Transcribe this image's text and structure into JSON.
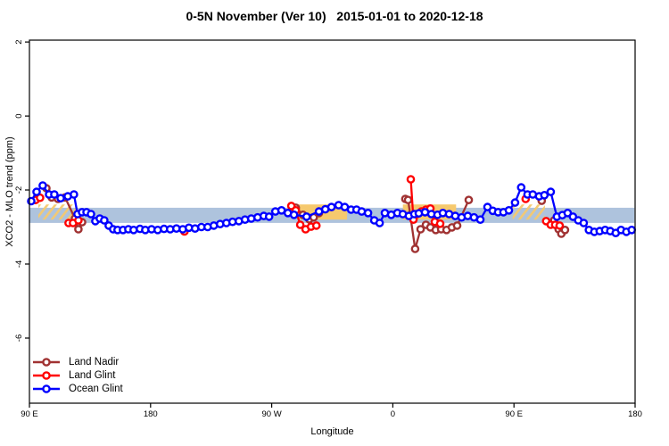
{
  "figure": {
    "title": "0-5N November (Ver 10)   2015-01-01 to 2020-12-18"
  },
  "chart_data": {
    "type": "line",
    "title": "0-5N November (Ver 10)   2015-01-01 to 2020-12-18",
    "xlabel": "Longitude",
    "ylabel": "XCO2 - MLO trend (ppm)",
    "x_units": "degrees eastward along axis starting at 90E (wrapped longitude)",
    "x_range": [
      0,
      450
    ],
    "x_ticks": [
      {
        "pos": 0,
        "label": "90 E"
      },
      {
        "pos": 90,
        "label": "180"
      },
      {
        "pos": 180,
        "label": "90 W"
      },
      {
        "pos": 270,
        "label": "0"
      },
      {
        "pos": 360,
        "label": "90 E"
      },
      {
        "pos": 450,
        "label": "180"
      }
    ],
    "y_range": [
      -7.76,
      2.05
    ],
    "y_ticks": [
      {
        "pos": 2,
        "label": "2"
      },
      {
        "pos": 0,
        "label": "0"
      },
      {
        "pos": -2,
        "label": "-2"
      },
      {
        "pos": -4,
        "label": "-4"
      },
      {
        "pos": -6,
        "label": "-6"
      }
    ],
    "grid": false,
    "legend_position": "bottom-left",
    "bands": [
      {
        "name": "ocean-reference-band",
        "color": "#AEC3DD",
        "opacity": 1,
        "y_top": -2.48,
        "y_bottom": -2.89,
        "pattern": "solid",
        "segments": [
          [
            0,
            449.5
          ]
        ]
      },
      {
        "name": "flagged-band-solid",
        "color": "#F6C96E",
        "opacity": 1,
        "y_top": -2.39,
        "y_bottom": -2.8,
        "pattern": "solid",
        "segments": [
          [
            200,
            236
          ],
          [
            277.5,
            317
          ]
        ]
      },
      {
        "name": "flagged-band-hatched",
        "color": "#F6C96E",
        "opacity": 0.95,
        "y_top": -2.39,
        "y_bottom": -2.8,
        "pattern": "hatch",
        "segments": [
          [
            6.6,
            34.4
          ],
          [
            359,
            383
          ]
        ]
      }
    ],
    "series": [
      {
        "name": "Land Nadir",
        "color": "#A03232",
        "marker": "open-circle",
        "gap_break": 9,
        "points": [
          [
            12.6,
            -1.95
          ],
          [
            16.5,
            -2.2
          ],
          [
            21.2,
            -2.24
          ],
          [
            26.5,
            -2.2
          ],
          [
            33.8,
            -2.77
          ],
          [
            36.4,
            -3.06
          ],
          [
            39.1,
            -2.87
          ],
          [
            197.9,
            -2.48
          ],
          [
            203.2,
            -2.67
          ],
          [
            207.9,
            -2.79
          ],
          [
            211.2,
            -2.74
          ],
          [
            215.1,
            -2.62
          ],
          [
            279.3,
            -2.24
          ],
          [
            281.3,
            -2.27
          ],
          [
            286.6,
            -3.59
          ],
          [
            290.6,
            -3.06
          ],
          [
            294.6,
            -2.94
          ],
          [
            297.9,
            -3.01
          ],
          [
            301.9,
            -3.08
          ],
          [
            305.9,
            -3.06
          ],
          [
            309.9,
            -3.08
          ],
          [
            313.9,
            -3.01
          ],
          [
            317.8,
            -2.96
          ],
          [
            326.4,
            -2.27
          ],
          [
            380.6,
            -2.29
          ],
          [
            389.9,
            -2.82
          ],
          [
            393.2,
            -3.06
          ],
          [
            395.2,
            -3.18
          ],
          [
            397.9,
            -3.08
          ]
        ]
      },
      {
        "name": "Land Glint",
        "color": "#FF0000",
        "marker": "open-circle",
        "gap_break": 9,
        "points": [
          [
            4.6,
            -2.27
          ],
          [
            7.9,
            -2.21
          ],
          [
            29.1,
            -2.89
          ],
          [
            32.4,
            -2.89
          ],
          [
            36.4,
            -2.82
          ],
          [
            115.2,
            -3.12
          ],
          [
            194.6,
            -2.43
          ],
          [
            197.9,
            -2.55
          ],
          [
            201.2,
            -2.94
          ],
          [
            205.2,
            -3.06
          ],
          [
            209.2,
            -2.99
          ],
          [
            213.2,
            -2.96
          ],
          [
            283.3,
            -1.71
          ],
          [
            285.3,
            -2.8
          ],
          [
            287.9,
            -2.65
          ],
          [
            291.3,
            -2.58
          ],
          [
            294.6,
            -2.53
          ],
          [
            297.9,
            -2.5
          ],
          [
            301.2,
            -2.86
          ],
          [
            305.2,
            -2.91
          ],
          [
            368.7,
            -2.24
          ],
          [
            383.9,
            -2.84
          ],
          [
            387.3,
            -2.94
          ],
          [
            390.6,
            -2.94
          ],
          [
            393.9,
            -2.96
          ]
        ]
      },
      {
        "name": "Ocean Glint",
        "color": "#0000FF",
        "marker": "open-circle",
        "gap_break": 25,
        "points": [
          [
            1.3,
            -2.3
          ],
          [
            5.3,
            -2.05
          ],
          [
            9.9,
            -1.88
          ],
          [
            14.6,
            -2.12
          ],
          [
            18.5,
            -2.12
          ],
          [
            23.2,
            -2.22
          ],
          [
            28.5,
            -2.17
          ],
          [
            33.1,
            -2.12
          ],
          [
            35.7,
            -2.65
          ],
          [
            39.1,
            -2.6
          ],
          [
            42.4,
            -2.6
          ],
          [
            45.7,
            -2.65
          ],
          [
            49.0,
            -2.84
          ],
          [
            52.3,
            -2.77
          ],
          [
            55.6,
            -2.82
          ],
          [
            58.9,
            -2.96
          ],
          [
            62.2,
            -3.06
          ],
          [
            65.5,
            -3.08
          ],
          [
            69.5,
            -3.08
          ],
          [
            73.5,
            -3.06
          ],
          [
            77.4,
            -3.08
          ],
          [
            82.1,
            -3.05
          ],
          [
            86.1,
            -3.08
          ],
          [
            90.7,
            -3.06
          ],
          [
            95.3,
            -3.08
          ],
          [
            100.0,
            -3.05
          ],
          [
            104.6,
            -3.06
          ],
          [
            109.2,
            -3.04
          ],
          [
            113.9,
            -3.06
          ],
          [
            118.5,
            -3.02
          ],
          [
            123.1,
            -3.04
          ],
          [
            127.8,
            -3.0
          ],
          [
            132.4,
            -3.0
          ],
          [
            137.0,
            -2.96
          ],
          [
            141.7,
            -2.92
          ],
          [
            146.3,
            -2.89
          ],
          [
            150.9,
            -2.86
          ],
          [
            155.6,
            -2.84
          ],
          [
            160.2,
            -2.8
          ],
          [
            164.8,
            -2.77
          ],
          [
            169.5,
            -2.74
          ],
          [
            174.1,
            -2.7
          ],
          [
            178.1,
            -2.72
          ],
          [
            182.7,
            -2.58
          ],
          [
            187.3,
            -2.55
          ],
          [
            192.0,
            -2.62
          ],
          [
            196.6,
            -2.67
          ],
          [
            205.9,
            -2.72
          ],
          [
            215.1,
            -2.58
          ],
          [
            219.8,
            -2.52
          ],
          [
            224.4,
            -2.46
          ],
          [
            229.7,
            -2.41
          ],
          [
            234.3,
            -2.46
          ],
          [
            239.0,
            -2.53
          ],
          [
            243.0,
            -2.53
          ],
          [
            246.9,
            -2.58
          ],
          [
            251.6,
            -2.62
          ],
          [
            256.2,
            -2.82
          ],
          [
            260.2,
            -2.89
          ],
          [
            264.1,
            -2.62
          ],
          [
            268.8,
            -2.67
          ],
          [
            273.4,
            -2.62
          ],
          [
            277.4,
            -2.65
          ],
          [
            281.9,
            -2.7
          ],
          [
            286.0,
            -2.65
          ],
          [
            289.3,
            -2.63
          ],
          [
            293.9,
            -2.6
          ],
          [
            298.6,
            -2.65
          ],
          [
            303.2,
            -2.67
          ],
          [
            307.2,
            -2.62
          ],
          [
            311.8,
            -2.65
          ],
          [
            316.4,
            -2.7
          ],
          [
            321.1,
            -2.74
          ],
          [
            325.7,
            -2.7
          ],
          [
            330.3,
            -2.74
          ],
          [
            335.0,
            -2.8
          ],
          [
            340.3,
            -2.46
          ],
          [
            344.2,
            -2.56
          ],
          [
            348.2,
            -2.6
          ],
          [
            352.2,
            -2.6
          ],
          [
            356.2,
            -2.55
          ],
          [
            360.8,
            -2.34
          ],
          [
            365.4,
            -1.93
          ],
          [
            370.1,
            -2.12
          ],
          [
            374.0,
            -2.12
          ],
          [
            378.7,
            -2.17
          ],
          [
            382.6,
            -2.14
          ],
          [
            387.3,
            -2.05
          ],
          [
            391.9,
            -2.72
          ],
          [
            395.9,
            -2.68
          ],
          [
            399.9,
            -2.62
          ],
          [
            403.8,
            -2.72
          ],
          [
            407.8,
            -2.82
          ],
          [
            411.8,
            -2.89
          ],
          [
            415.7,
            -3.08
          ],
          [
            419.7,
            -3.13
          ],
          [
            423.7,
            -3.11
          ],
          [
            427.7,
            -3.08
          ],
          [
            431.6,
            -3.11
          ],
          [
            435.6,
            -3.16
          ],
          [
            439.5,
            -3.08
          ],
          [
            443.5,
            -3.13
          ],
          [
            447.5,
            -3.08
          ]
        ]
      }
    ]
  }
}
